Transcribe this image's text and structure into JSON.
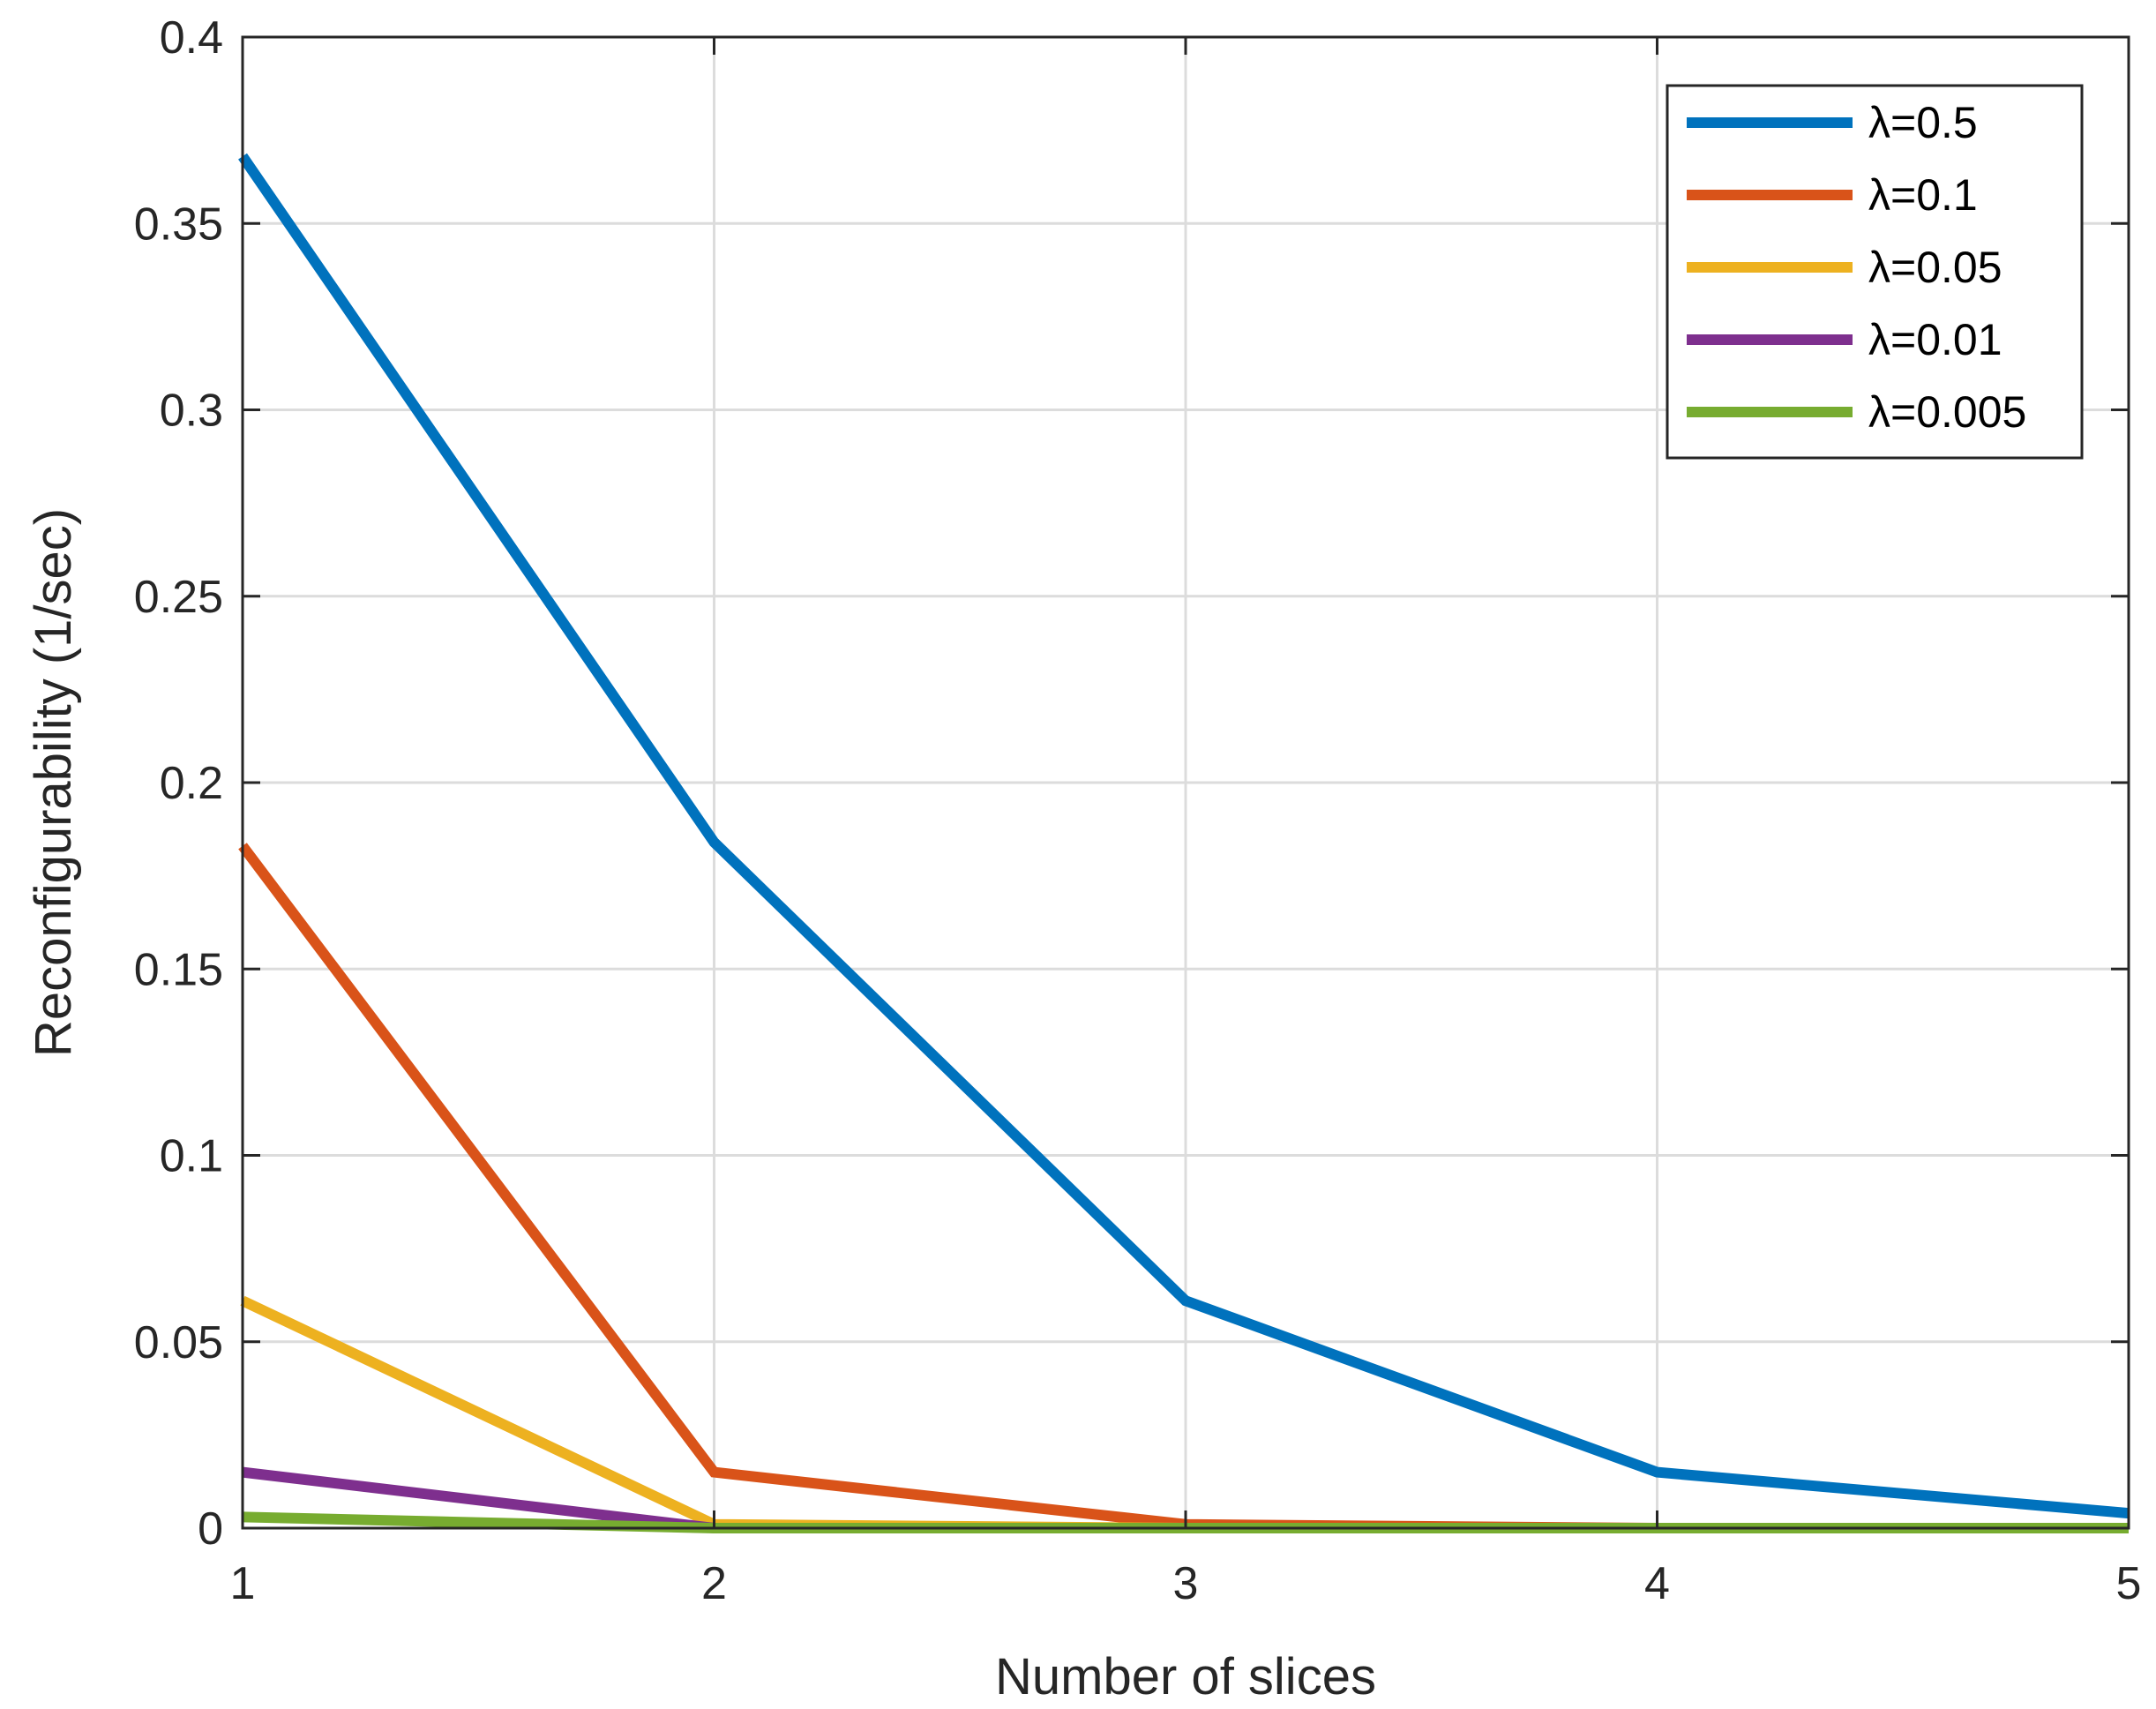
{
  "chart_data": {
    "type": "line",
    "title": "",
    "xlabel": "Number of slices",
    "ylabel": "Reconfigurability (1/sec)",
    "x": [
      1,
      2,
      3,
      4,
      5
    ],
    "xlim": [
      1,
      5
    ],
    "ylim": [
      0,
      0.4
    ],
    "xticks": [
      1,
      2,
      3,
      4,
      5
    ],
    "xtick_labels": [
      "1",
      "2",
      "3",
      "4",
      "5"
    ],
    "yticks": [
      0,
      0.05,
      0.1,
      0.15,
      0.2,
      0.25,
      0.3,
      0.35,
      0.4
    ],
    "ytick_labels": [
      "0",
      "0.05",
      "0.1",
      "0.15",
      "0.2",
      "0.25",
      "0.3",
      "0.35",
      "0.4"
    ],
    "grid": true,
    "legend_position": "top-right",
    "series": [
      {
        "name": "λ=0.5",
        "color": "#0072BD",
        "values": [
          0.368,
          0.184,
          0.061,
          0.015,
          0.004
        ]
      },
      {
        "name": "λ=0.1",
        "color": "#D95319",
        "values": [
          0.183,
          0.015,
          0.001,
          0.0,
          0.0
        ]
      },
      {
        "name": "λ=0.05",
        "color": "#EDB120",
        "values": [
          0.061,
          0.001,
          0.0,
          0.0,
          0.0
        ]
      },
      {
        "name": "λ=0.01",
        "color": "#7E2F8E",
        "values": [
          0.015,
          0.0,
          0.0,
          0.0,
          0.0
        ]
      },
      {
        "name": "λ=0.005",
        "color": "#77AC30",
        "values": [
          0.003,
          0.0,
          0.0,
          0.0,
          0.0
        ]
      }
    ]
  }
}
